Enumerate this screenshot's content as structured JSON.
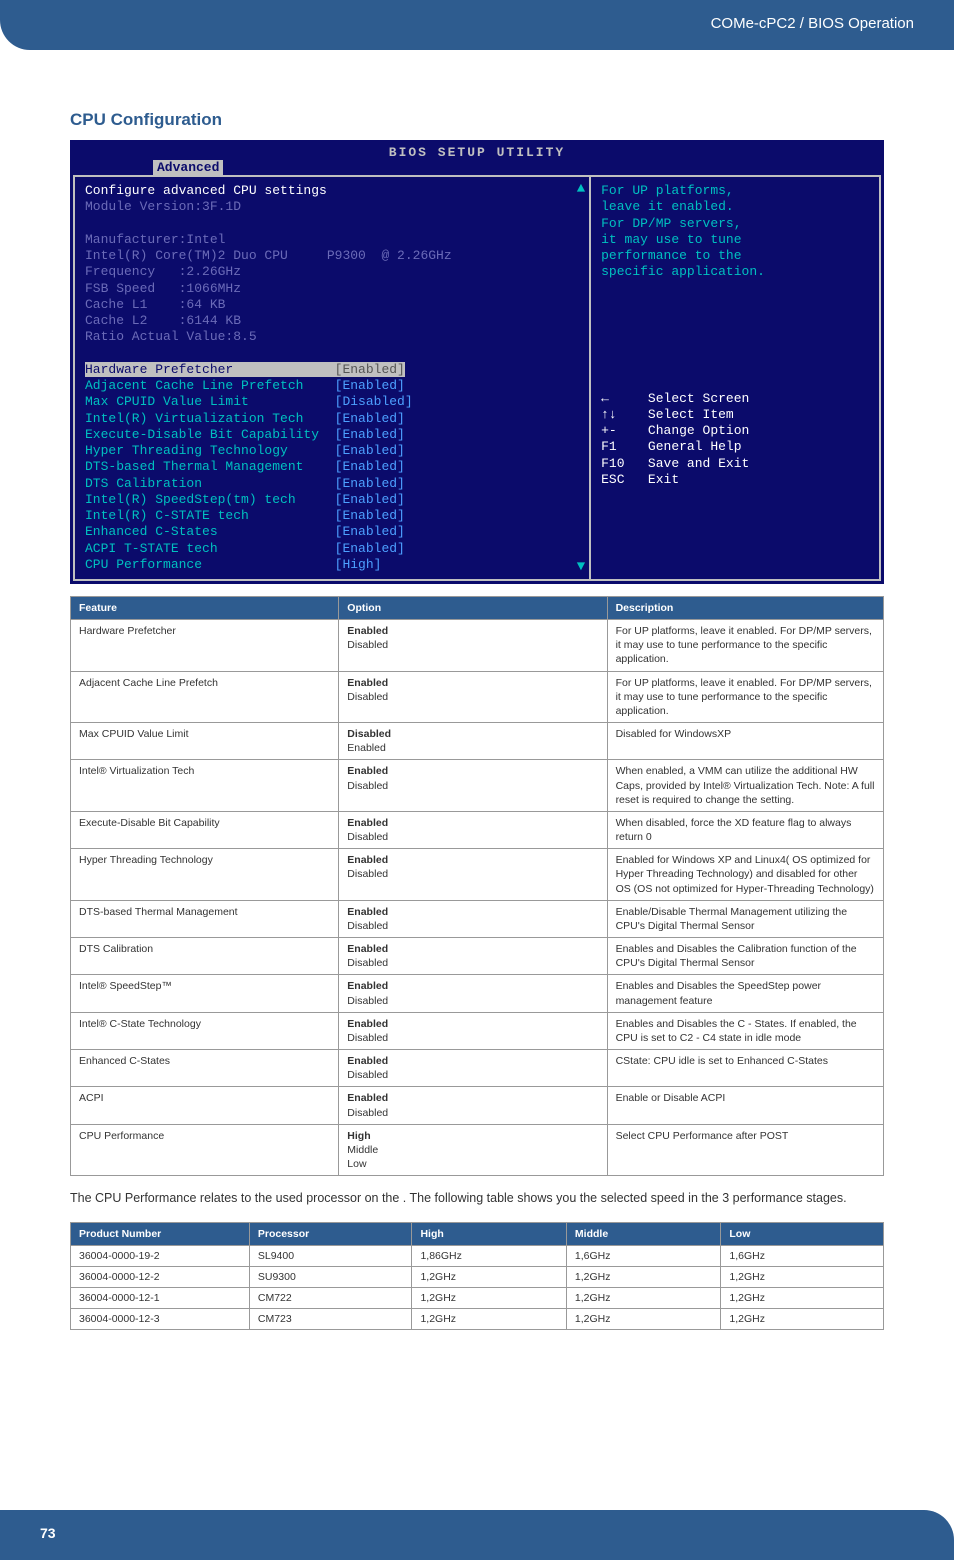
{
  "header": {
    "title": "COMe-cPC2 / BIOS Operation"
  },
  "section_title": "CPU Configuration",
  "bios": {
    "title": "BIOS SETUP UTILITY",
    "tab": "Advanced",
    "left_lines": [
      {
        "text": "Configure advanced CPU settings",
        "cls": "c-white"
      },
      {
        "text": "Module Version:3F.1D",
        "cls": "c-gray"
      },
      {
        "text": " ",
        "cls": ""
      },
      {
        "text": "Manufacturer:Intel",
        "cls": "c-gray"
      },
      {
        "text": "Intel(R) Core(TM)2 Duo CPU     P9300  @ 2.26GHz",
        "cls": "c-gray"
      },
      {
        "text": "Frequency   :2.26GHz",
        "cls": "c-gray"
      },
      {
        "text": "FSB Speed   :1066MHz",
        "cls": "c-gray"
      },
      {
        "text": "Cache L1    :64 KB",
        "cls": "c-gray"
      },
      {
        "text": "Cache L2    :6144 KB",
        "cls": "c-gray"
      },
      {
        "text": "Ratio Actual Value:8.5",
        "cls": "c-gray"
      },
      {
        "text": " ",
        "cls": ""
      },
      {
        "text": "Hardware Prefetcher             [Enabled]",
        "cls": "hl",
        "hl": true
      },
      {
        "text": "Adjacent Cache Line Prefetch    [Enabled]",
        "cls": "c-cyan"
      },
      {
        "text": "Max CPUID Value Limit           [Disabled]",
        "cls": "c-cyan"
      },
      {
        "text": "Intel(R) Virtualization Tech    [Enabled]",
        "cls": "c-cyan"
      },
      {
        "text": "Execute-Disable Bit Capability  [Enabled]",
        "cls": "c-cyan"
      },
      {
        "text": "Hyper Threading Technology      [Enabled]",
        "cls": "c-cyan"
      },
      {
        "text": "DTS-based Thermal Management    [Enabled]",
        "cls": "c-cyan"
      },
      {
        "text": "DTS Calibration                 [Enabled]",
        "cls": "c-cyan"
      },
      {
        "text": "Intel(R) SpeedStep(tm) tech     [Enabled]",
        "cls": "c-cyan"
      },
      {
        "text": "Intel(R) C-STATE tech           [Enabled]",
        "cls": "c-cyan"
      },
      {
        "text": "Enhanced C-States               [Enabled]",
        "cls": "c-cyan"
      },
      {
        "text": "ACPI T-STATE tech               [Enabled]",
        "cls": "c-cyan"
      },
      {
        "text": "CPU Performance                 [High]",
        "cls": "c-cyan"
      }
    ],
    "right_help": [
      "For UP platforms,",
      "leave it enabled.",
      "For DP/MP servers,",
      "it may use to tune",
      "performance to the",
      "specific application."
    ],
    "right_nav": [
      "←     Select Screen",
      "↑↓    Select Item",
      "+-    Change Option",
      "F1    General Help",
      "F10   Save and Exit",
      "ESC   Exit"
    ]
  },
  "feat_table": {
    "headers": [
      "Feature",
      "Option",
      "Description"
    ],
    "col_widths": [
      "33%",
      "33%",
      "34%"
    ],
    "rows": [
      {
        "f": "Hardware Prefetcher",
        "opt_bold": "Enabled",
        "opt_rest": "Disabled",
        "d": "For UP platforms, leave it enabled. For DP/MP servers, it may use to tune performance to the specific application."
      },
      {
        "f": "Adjacent Cache Line Prefetch",
        "opt_bold": "Enabled",
        "opt_rest": "Disabled",
        "d": "For UP platforms, leave it enabled. For DP/MP servers, it may use to tune performance to the specific application."
      },
      {
        "f": "Max CPUID Value Limit",
        "opt_bold": "Disabled",
        "opt_rest": "Enabled",
        "d": "Disabled for WindowsXP"
      },
      {
        "f": "Intel® Virtualization Tech",
        "opt_bold": "Enabled",
        "opt_rest": "Disabled",
        "d": "When enabled, a VMM can utilize the additional HW Caps, provided by Intel® Virtualization Tech. Note: A full reset is required to change the setting."
      },
      {
        "f": "Execute-Disable Bit Capability",
        "opt_bold": "Enabled",
        "opt_rest": "Disabled",
        "d": "When disabled, force the XD feature flag to always return 0"
      },
      {
        "f": "Hyper Threading Technology",
        "opt_bold": "Enabled",
        "opt_rest": "Disabled",
        "d": "Enabled for Windows XP and Linux4( OS optimized for Hyper Threading Technology) and disabled for other OS (OS not optimized for Hyper-Threading Technology)"
      },
      {
        "f": "DTS-based Thermal Management",
        "opt_bold": "Enabled",
        "opt_rest": "Disabled",
        "d": "Enable/Disable Thermal Management utilizing the CPU's Digital Thermal Sensor"
      },
      {
        "f": "DTS Calibration",
        "opt_bold": "Enabled",
        "opt_rest": "Disabled",
        "d": "Enables and Disables the Calibration function of the CPU's Digital Thermal Sensor"
      },
      {
        "f": "Intel® SpeedStep™",
        "opt_bold": "Enabled",
        "opt_rest": "Disabled",
        "d": "Enables and Disables the SpeedStep power management feature"
      },
      {
        "f": "Intel® C-State Technology",
        "opt_bold": "Enabled",
        "opt_rest": "Disabled",
        "d": "Enables and Disables the C - States. If enabled, the CPU is set to C2 - C4 state in idle mode"
      },
      {
        "f": "Enhanced C-States",
        "opt_bold": "Enabled",
        "opt_rest": "Disabled",
        "d": "CState: CPU idle is set to Enhanced C-States"
      },
      {
        "f": "ACPI",
        "opt_bold": "Enabled",
        "opt_rest": "Disabled",
        "d": "Enable or Disable ACPI"
      },
      {
        "f": "CPU Performance",
        "opt_bold": "High",
        "opt_rest": "Middle\nLow",
        "d": "Select CPU Performance after POST"
      }
    ]
  },
  "body_text": "The CPU Performance relates to the used processor on the . The following table shows you the selected speed in the 3 performance stages.",
  "perf_table": {
    "headers": [
      "Product Number",
      "Processor",
      "High",
      "Middle",
      "Low"
    ],
    "rows": [
      [
        "36004-0000-19-2",
        "SL9400",
        "1,86GHz",
        "1,6GHz",
        "1,6GHz"
      ],
      [
        "36004-0000-12-2",
        "SU9300",
        "1,2GHz",
        "1,2GHz",
        "1,2GHz"
      ],
      [
        "36004-0000-12-1",
        "CM722",
        "1,2GHz",
        "1,2GHz",
        "1,2GHz"
      ],
      [
        "36004-0000-12-3",
        "CM723",
        "1,2GHz",
        "1,2GHz",
        "1,2GHz"
      ]
    ]
  },
  "page_number": "73"
}
